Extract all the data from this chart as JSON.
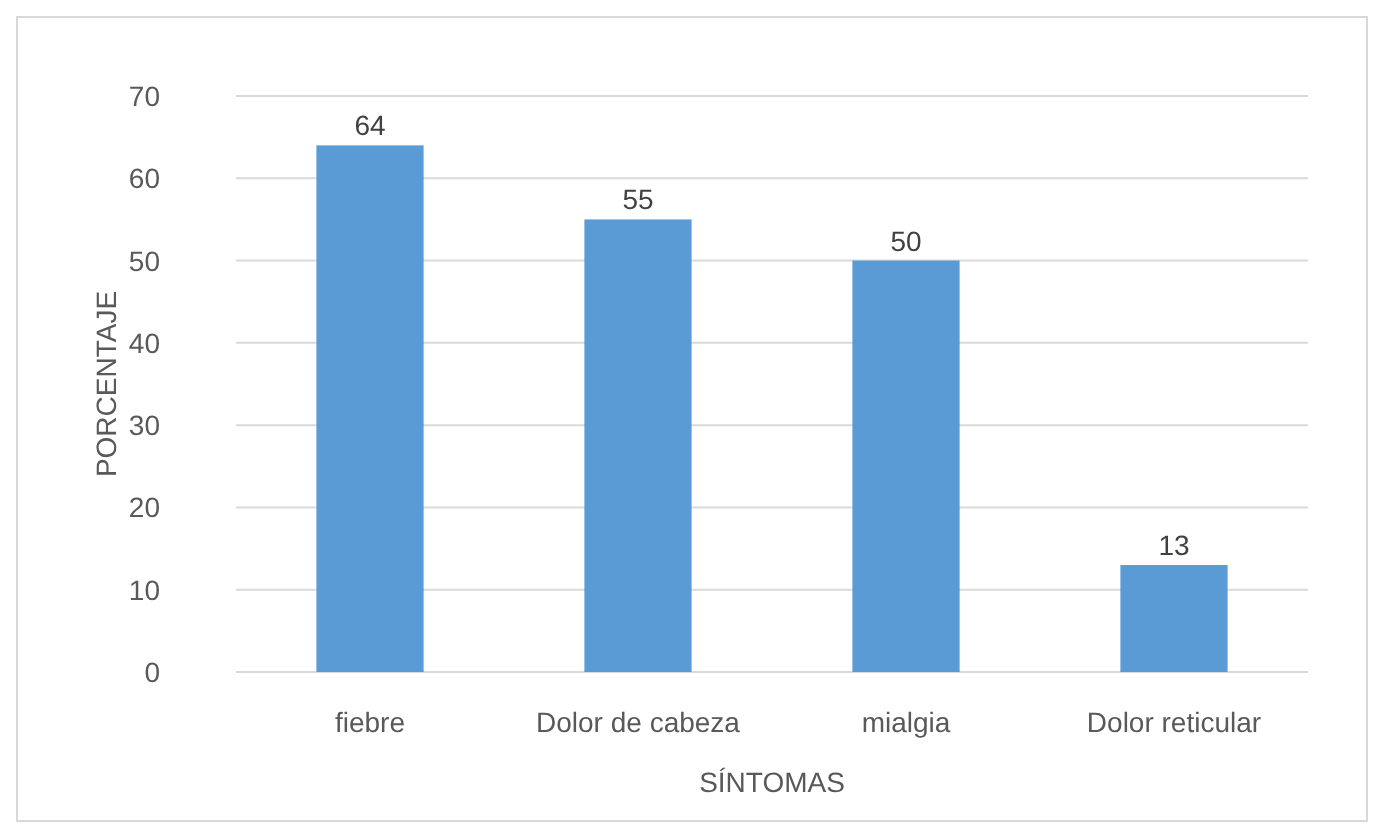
{
  "chart_data": {
    "type": "bar",
    "xlabel": "SÍNTOMAS",
    "ylabel": "PORCENTAJE",
    "categories": [
      "fiebre",
      "Dolor de cabeza",
      "mialgia",
      "Dolor reticular"
    ],
    "values": [
      64,
      55,
      50,
      13
    ],
    "color": "#5b9bd5",
    "ylim": [
      0,
      70
    ],
    "yticks": [
      0,
      10,
      20,
      30,
      40,
      50,
      60,
      70
    ],
    "grid": "y",
    "data_labels": true
  }
}
